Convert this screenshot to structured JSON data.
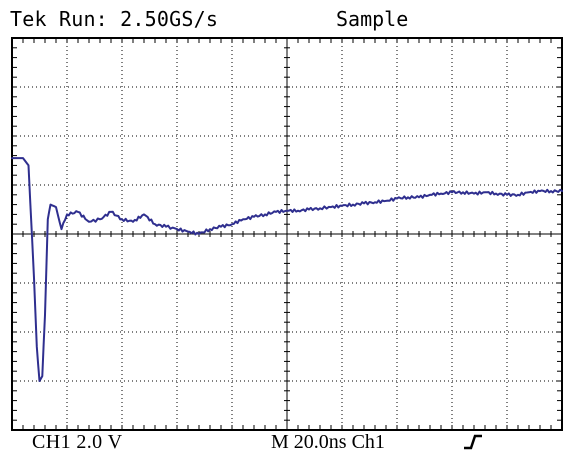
{
  "header": {
    "title": "Tek Run: 2.50GS/s",
    "mode": "Sample"
  },
  "footer": {
    "channel_scale": "CH1  2.0 V",
    "timebase": "M 20.0ns Ch1",
    "trigger_icon": "rising-edge-icon"
  },
  "colors": {
    "trace": "#2f2f8f",
    "grid": "#000000",
    "background": "#ffffff"
  },
  "chart_data": {
    "type": "line",
    "title": "Tek Run: 2.50GS/s",
    "xlabel": "",
    "ylabel": "",
    "grid": true,
    "legend": "",
    "x_divisions": 10,
    "y_divisions": 8,
    "x_units": "ns",
    "y_units": "V",
    "x_scale_per_div": 20,
    "y_scale_per_div": 2,
    "x": [
      0,
      4,
      6,
      8,
      9,
      10,
      11,
      12,
      13,
      14,
      16,
      18,
      20,
      24,
      28,
      32,
      36,
      40,
      44,
      48,
      52,
      56,
      60,
      64,
      68,
      72,
      76,
      80,
      84,
      88,
      92,
      96,
      100,
      104,
      108,
      112,
      116,
      120,
      124,
      128,
      132,
      136,
      140,
      144,
      148,
      152,
      156,
      160,
      164,
      168,
      172,
      176,
      180,
      184,
      188,
      192,
      196,
      200
    ],
    "series": [
      {
        "values": [
          3.1,
          3.1,
          2.8,
          -1.8,
          -4.6,
          -6.0,
          -5.8,
          -3.3,
          0.6,
          1.2,
          1.1,
          0.2,
          0.8,
          0.9,
          0.5,
          0.6,
          0.9,
          0.6,
          0.5,
          0.8,
          0.4,
          0.3,
          0.2,
          0.1,
          0.0,
          0.2,
          0.3,
          0.4,
          0.6,
          0.7,
          0.8,
          0.9,
          0.95,
          0.95,
          1.0,
          1.05,
          1.1,
          1.15,
          1.2,
          1.25,
          1.3,
          1.35,
          1.45,
          1.5,
          1.5,
          1.6,
          1.65,
          1.7,
          1.7,
          1.65,
          1.7,
          1.65,
          1.6,
          1.6,
          1.7,
          1.75,
          1.75,
          1.75
        ]
      }
    ],
    "ylim": [
      -8,
      8
    ],
    "xlim": [
      0,
      200
    ]
  }
}
